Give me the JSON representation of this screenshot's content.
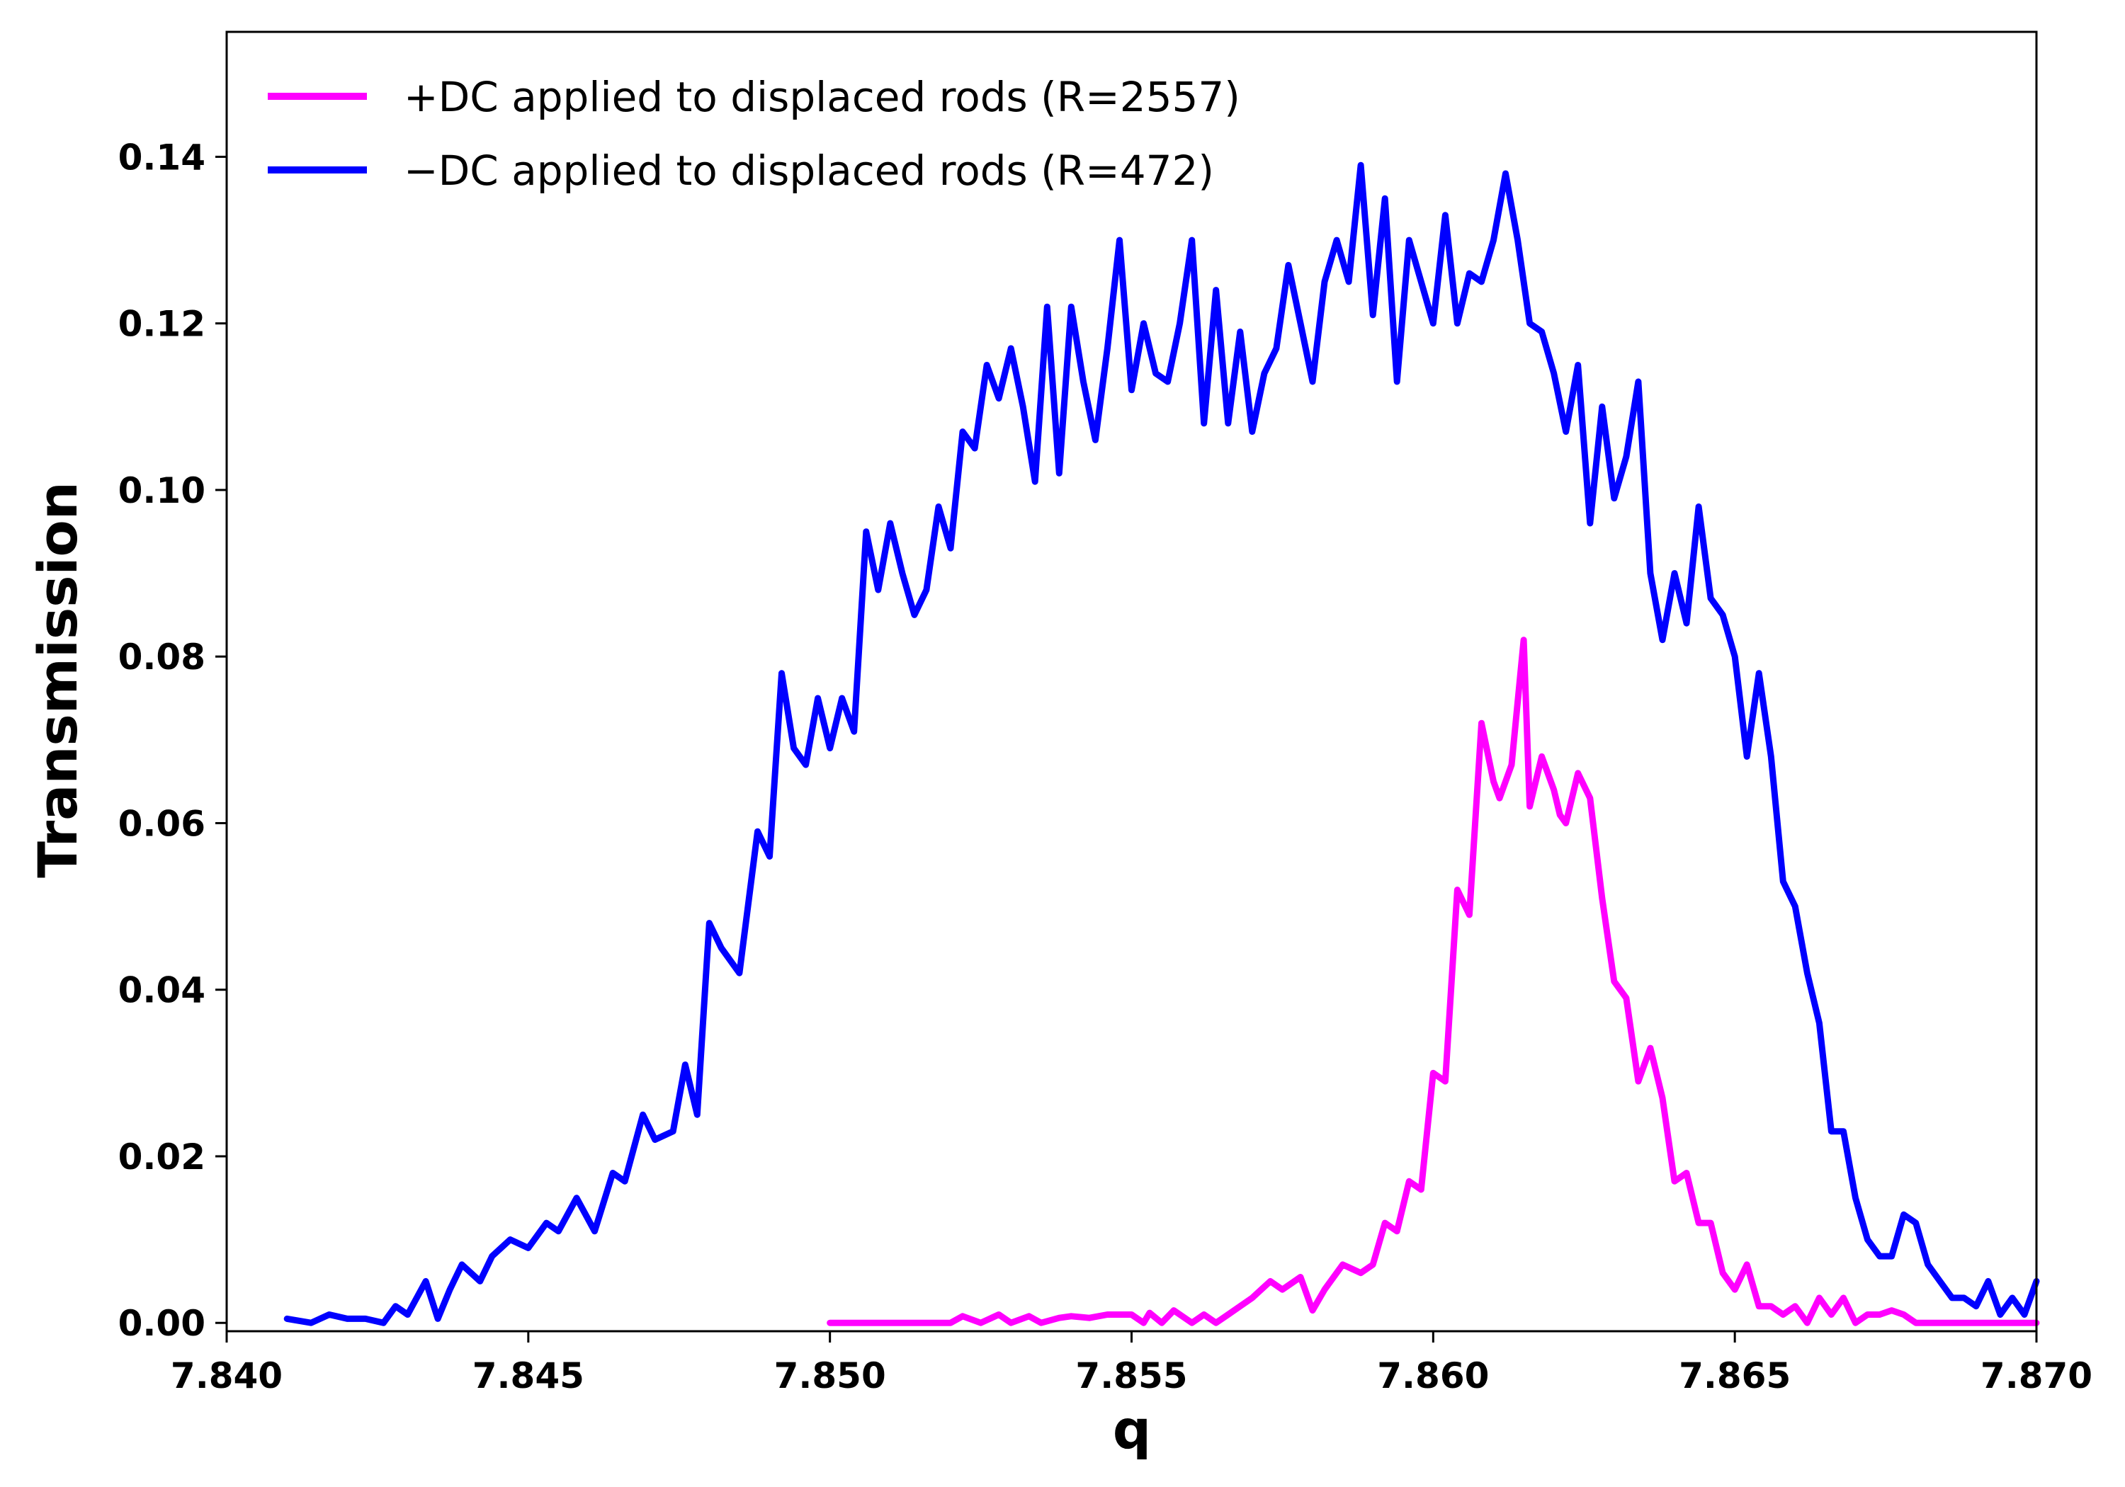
{
  "chart_data": {
    "type": "line",
    "title": "",
    "xlabel": "q",
    "ylabel": "Transmission",
    "xlim": [
      7.84,
      7.87
    ],
    "ylim": [
      -0.001,
      0.155
    ],
    "xticks": [
      "7.840",
      "7.845",
      "7.850",
      "7.855",
      "7.860",
      "7.865",
      "7.870"
    ],
    "yticks": [
      "0.00",
      "0.02",
      "0.04",
      "0.06",
      "0.08",
      "0.10",
      "0.12",
      "0.14"
    ],
    "grid": false,
    "legend_position": "top-left",
    "series": [
      {
        "name": "+DC applied to displaced rods (R=2557)",
        "color": "#ff00ff",
        "x": [
          7.85,
          7.852,
          7.8522,
          7.8525,
          7.8528,
          7.853,
          7.8533,
          7.8535,
          7.8538,
          7.854,
          7.8543,
          7.8546,
          7.855,
          7.8552,
          7.8553,
          7.8555,
          7.8557,
          7.856,
          7.8562,
          7.8564,
          7.8566,
          7.8568,
          7.857,
          7.8573,
          7.8575,
          7.8578,
          7.858,
          7.8582,
          7.8585,
          7.8588,
          7.859,
          7.8592,
          7.8594,
          7.8596,
          7.8598,
          7.86,
          7.8602,
          7.8604,
          7.8606,
          7.8608,
          7.861,
          7.8611,
          7.8613,
          7.8615,
          7.8616,
          7.8618,
          7.862,
          7.8621,
          7.8622,
          7.8624,
          7.8626,
          7.8628,
          7.863,
          7.8632,
          7.8634,
          7.8636,
          7.8638,
          7.864,
          7.8642,
          7.8644,
          7.8646,
          7.8648,
          7.865,
          7.8652,
          7.8654,
          7.8656,
          7.8658,
          7.866,
          7.8662,
          7.8664,
          7.8666,
          7.8668,
          7.867,
          7.8672,
          7.8674,
          7.8676,
          7.8678,
          7.868,
          7.8682,
          7.8684,
          7.8686,
          7.869,
          7.87
        ],
        "y": [
          0.0,
          0.0,
          0.0008,
          0.0,
          0.001,
          0.0,
          0.0008,
          0.0,
          0.0006,
          0.0008,
          0.0006,
          0.001,
          0.001,
          0.0,
          0.0012,
          0.0,
          0.0015,
          0.0,
          0.001,
          0.0,
          0.001,
          0.002,
          0.003,
          0.005,
          0.004,
          0.0055,
          0.0015,
          0.004,
          0.007,
          0.006,
          0.007,
          0.012,
          0.011,
          0.017,
          0.016,
          0.03,
          0.029,
          0.052,
          0.049,
          0.072,
          0.065,
          0.063,
          0.067,
          0.082,
          0.062,
          0.068,
          0.064,
          0.061,
          0.06,
          0.066,
          0.063,
          0.051,
          0.041,
          0.039,
          0.029,
          0.033,
          0.027,
          0.017,
          0.018,
          0.012,
          0.012,
          0.006,
          0.004,
          0.007,
          0.002,
          0.002,
          0.001,
          0.002,
          0.0,
          0.003,
          0.001,
          0.003,
          0.0,
          0.001,
          0.001,
          0.0015,
          0.001,
          0.0,
          0.0,
          0.0,
          0.0,
          0.0,
          0.0
        ]
      },
      {
        "name": "−DC applied to displaced rods (R=472)",
        "color": "#0000ff",
        "x": [
          7.841,
          7.8414,
          7.8417,
          7.842,
          7.8423,
          7.8426,
          7.8428,
          7.843,
          7.8433,
          7.8435,
          7.8437,
          7.8439,
          7.8442,
          7.8444,
          7.8447,
          7.845,
          7.8453,
          7.8455,
          7.8458,
          7.8461,
          7.8464,
          7.8466,
          7.8469,
          7.8471,
          7.8474,
          7.8476,
          7.8478,
          7.848,
          7.8482,
          7.8485,
          7.8488,
          7.849,
          7.8492,
          7.8494,
          7.8496,
          7.8498,
          7.85,
          7.8502,
          7.8504,
          7.8506,
          7.8508,
          7.851,
          7.8512,
          7.8514,
          7.8516,
          7.8518,
          7.852,
          7.8522,
          7.8524,
          7.8526,
          7.8528,
          7.853,
          7.8532,
          7.8534,
          7.8536,
          7.8538,
          7.854,
          7.8542,
          7.8544,
          7.8546,
          7.8548,
          7.855,
          7.8552,
          7.8554,
          7.8556,
          7.8558,
          7.856,
          7.8562,
          7.8564,
          7.8566,
          7.8568,
          7.857,
          7.8572,
          7.8574,
          7.8576,
          7.8578,
          7.858,
          7.8582,
          7.8584,
          7.8586,
          7.8588,
          7.859,
          7.8592,
          7.8594,
          7.8596,
          7.8598,
          7.86,
          7.8602,
          7.8604,
          7.8606,
          7.8608,
          7.861,
          7.8612,
          7.8614,
          7.8616,
          7.8618,
          7.862,
          7.8622,
          7.8624,
          7.8626,
          7.8628,
          7.863,
          7.8632,
          7.8634,
          7.8636,
          7.8638,
          7.864,
          7.8642,
          7.8644,
          7.8646,
          7.8648,
          7.865,
          7.8652,
          7.8654,
          7.8656,
          7.8658,
          7.866,
          7.8662,
          7.8664,
          7.8666,
          7.8668,
          7.867,
          7.8672,
          7.8674,
          7.8676,
          7.8678,
          7.868,
          7.8682,
          7.8684,
          7.8686,
          7.8688,
          7.869,
          7.8692,
          7.8694,
          7.8696,
          7.8698,
          7.87
        ],
        "y": [
          0.0005,
          0.0,
          0.001,
          0.0005,
          0.0005,
          0.0,
          0.002,
          0.001,
          0.005,
          0.0005,
          0.004,
          0.007,
          0.005,
          0.008,
          0.01,
          0.009,
          0.012,
          0.011,
          0.015,
          0.011,
          0.018,
          0.017,
          0.025,
          0.022,
          0.023,
          0.031,
          0.025,
          0.048,
          0.045,
          0.042,
          0.059,
          0.056,
          0.078,
          0.069,
          0.067,
          0.075,
          0.069,
          0.075,
          0.071,
          0.095,
          0.088,
          0.096,
          0.09,
          0.085,
          0.088,
          0.098,
          0.093,
          0.107,
          0.105,
          0.115,
          0.111,
          0.117,
          0.11,
          0.101,
          0.122,
          0.102,
          0.122,
          0.113,
          0.106,
          0.117,
          0.13,
          0.112,
          0.12,
          0.114,
          0.113,
          0.12,
          0.13,
          0.108,
          0.124,
          0.108,
          0.119,
          0.107,
          0.114,
          0.117,
          0.127,
          0.12,
          0.113,
          0.125,
          0.13,
          0.125,
          0.139,
          0.121,
          0.135,
          0.113,
          0.13,
          0.125,
          0.12,
          0.133,
          0.12,
          0.126,
          0.125,
          0.13,
          0.138,
          0.13,
          0.12,
          0.119,
          0.114,
          0.107,
          0.115,
          0.096,
          0.11,
          0.099,
          0.104,
          0.113,
          0.09,
          0.082,
          0.09,
          0.084,
          0.098,
          0.087,
          0.085,
          0.08,
          0.068,
          0.078,
          0.068,
          0.053,
          0.05,
          0.042,
          0.036,
          0.023,
          0.023,
          0.015,
          0.01,
          0.008,
          0.008,
          0.013,
          0.012,
          0.007,
          0.005,
          0.003,
          0.003,
          0.002,
          0.005,
          0.001,
          0.003,
          0.001,
          0.005
        ]
      }
    ]
  }
}
